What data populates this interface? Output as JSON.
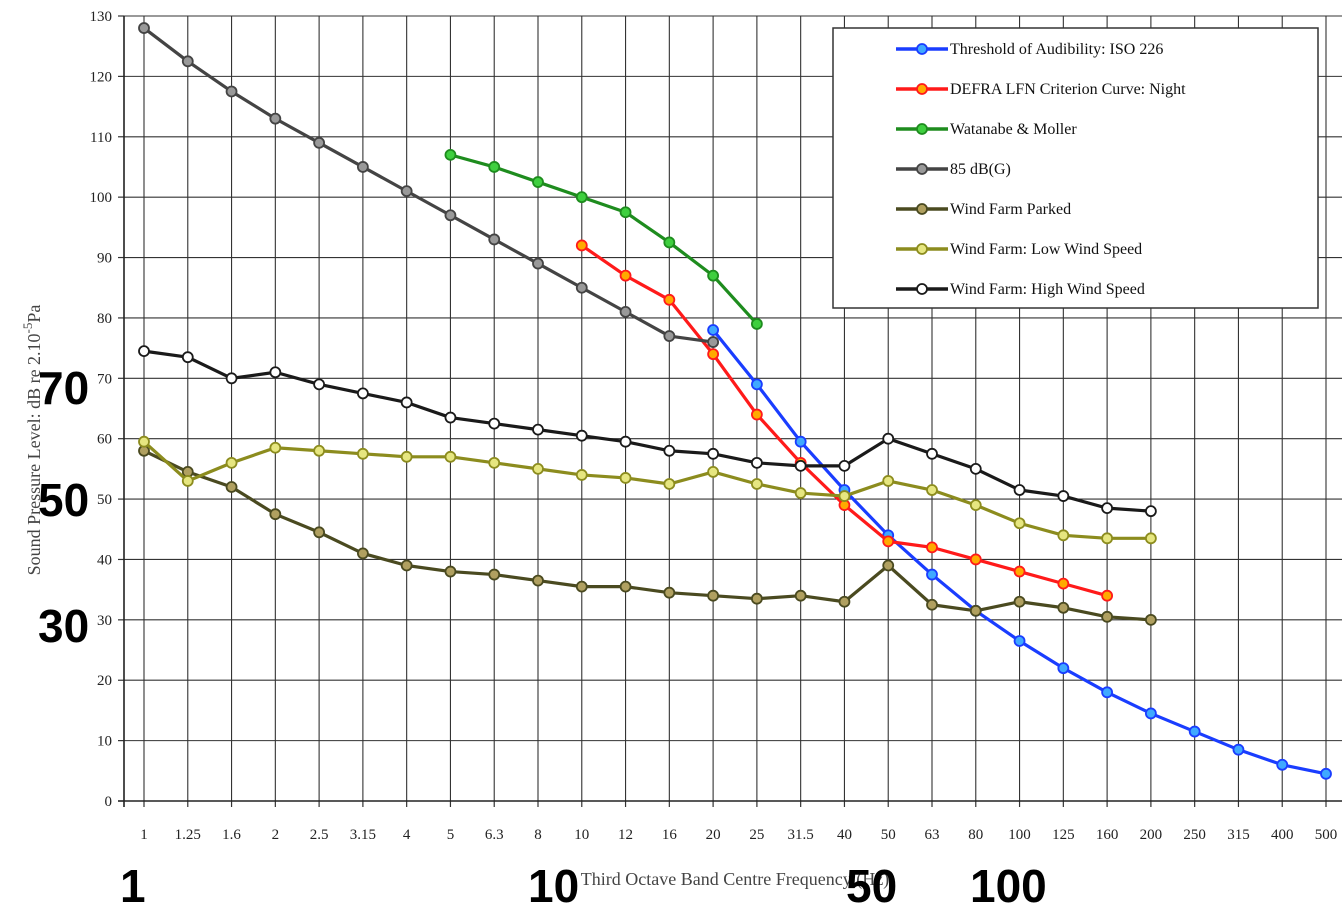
{
  "chart_data": {
    "type": "line",
    "title": "",
    "xlabel": "Third Octave Band Centre Frequency (Hz)",
    "ylabel": "Sound Pressure Level: dB re 2.10-5Pa",
    "ylabel_main": "Sound Pressure Level: dB re 2.10",
    "ylabel_exp": "-5",
    "ylabel_unit": "Pa",
    "ylim": [
      0,
      130
    ],
    "yticks": [
      0,
      10,
      20,
      30,
      40,
      50,
      60,
      70,
      80,
      90,
      100,
      110,
      120,
      130
    ],
    "grid": true,
    "legend_position": "top-right",
    "categories": [
      "1",
      "1.25",
      "1.6",
      "2",
      "2.5",
      "3.15",
      "4",
      "5",
      "6.3",
      "8",
      "10",
      "12",
      "16",
      "20",
      "25",
      "31.5",
      "40",
      "50",
      "63",
      "80",
      "100",
      "125",
      "160",
      "200",
      "250",
      "315",
      "400",
      "500"
    ],
    "series": [
      {
        "name": "Threshold of Audibility: ISO 226",
        "color": "#1a3dff",
        "marker_fill": "#3fa9ff",
        "values": [
          null,
          null,
          null,
          null,
          null,
          null,
          null,
          null,
          null,
          null,
          null,
          null,
          null,
          78,
          69,
          59.5,
          51.5,
          44,
          37.5,
          31.5,
          26.5,
          22,
          18,
          14.5,
          11.5,
          8.5,
          6,
          4.5
        ]
      },
      {
        "name": "DEFRA LFN Criterion Curve: Night",
        "color": "#ff1a1a",
        "marker_fill": "#ffaa00",
        "values": [
          null,
          null,
          null,
          null,
          null,
          null,
          null,
          null,
          null,
          null,
          92,
          87,
          83,
          74,
          64,
          56,
          49,
          43,
          42,
          40,
          38,
          36,
          34,
          null,
          null,
          null,
          null,
          null
        ]
      },
      {
        "name": "Watanabe & Moller",
        "color": "#1e8c1e",
        "marker_fill": "#3fcf3f",
        "values": [
          null,
          null,
          null,
          null,
          null,
          null,
          null,
          107,
          105,
          102.5,
          100,
          97.5,
          92.5,
          87,
          79,
          null,
          null,
          null,
          null,
          null,
          null,
          null,
          null,
          null,
          null,
          null,
          null,
          null
        ]
      },
      {
        "name": "85 dB(G)",
        "color": "#444444",
        "marker_fill": "#999999",
        "values": [
          128,
          122.5,
          117.5,
          113,
          109,
          105,
          101,
          97,
          93,
          89,
          85,
          81,
          77,
          76,
          null,
          null,
          null,
          null,
          null,
          null,
          null,
          null,
          null,
          null,
          null,
          null,
          null,
          null
        ]
      },
      {
        "name": "Wind Farm Parked",
        "color": "#4a4a20",
        "marker_fill": "#b0a060",
        "values": [
          58,
          54.5,
          52,
          47.5,
          44.5,
          41,
          39,
          38,
          37.5,
          36.5,
          35.5,
          35.5,
          34.5,
          34,
          33.5,
          34,
          33,
          39,
          32.5,
          31.5,
          33,
          32,
          30.5,
          30,
          null,
          null,
          null,
          null
        ]
      },
      {
        "name": "Wind Farm: Low Wind Speed",
        "color": "#8c8c1e",
        "marker_fill": "#e6e680",
        "values": [
          59.5,
          53,
          56,
          58.5,
          58,
          57.5,
          57,
          57,
          56,
          55,
          54,
          53.5,
          52.5,
          54.5,
          52.5,
          51,
          50.5,
          53,
          51.5,
          49,
          46,
          44,
          43.5,
          43.5,
          null,
          null,
          null,
          null
        ]
      },
      {
        "name": "Wind Farm: High Wind Speed",
        "color": "#1a1a1a",
        "marker_fill": "#ffffff",
        "values": [
          74.5,
          73.5,
          70,
          71,
          69,
          67.5,
          66,
          63.5,
          62.5,
          61.5,
          60.5,
          59.5,
          58,
          57.5,
          56,
          55.5,
          55.5,
          60,
          57.5,
          55,
          51.5,
          50.5,
          48.5,
          48,
          null,
          null,
          null,
          null
        ]
      }
    ],
    "annotations": [
      "70",
      "50",
      "30",
      "1",
      "10",
      "50",
      "100"
    ]
  }
}
